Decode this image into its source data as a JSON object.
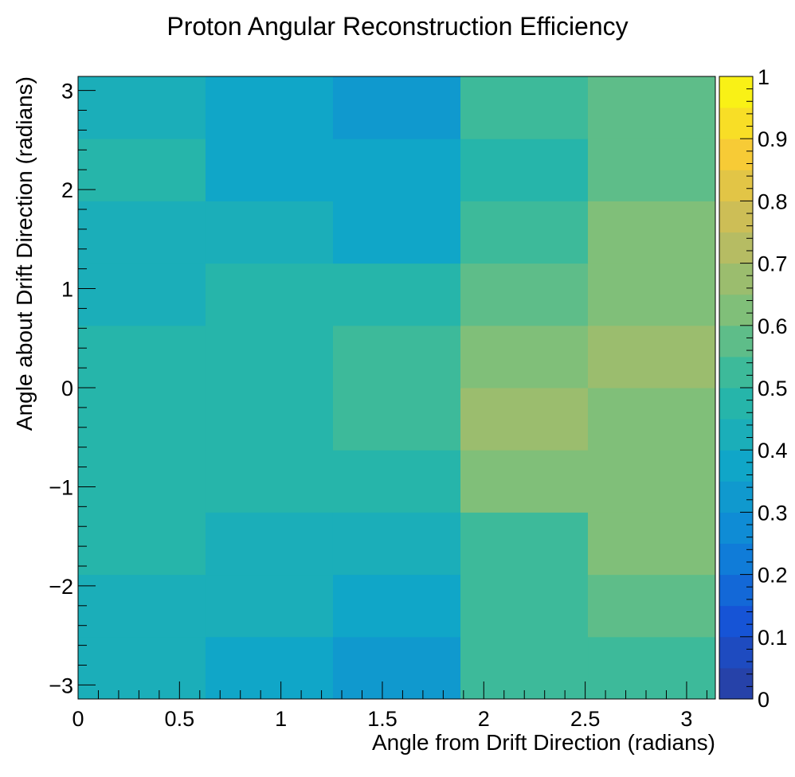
{
  "chart_data": {
    "type": "heatmap",
    "title": "Proton Angular Reconstruction Efficiency",
    "xlabel": "Angle from Drift Direction (radians)",
    "ylabel": "Angle about Drift Direction (radians)",
    "xlim": [
      0,
      3.1416
    ],
    "ylim": [
      -3.1416,
      3.1416
    ],
    "x_bin_edges": [
      0,
      0.6283,
      1.2566,
      1.885,
      2.5133,
      3.1416
    ],
    "y_bin_edges": [
      -3.1416,
      -2.5133,
      -1.885,
      -1.2566,
      -0.6283,
      0,
      0.6283,
      1.2566,
      1.885,
      2.5133,
      3.1416
    ],
    "x_ticks": [
      0,
      0.5,
      1,
      1.5,
      2,
      2.5,
      3
    ],
    "x_tick_labels": [
      "0",
      "0.5",
      "1",
      "1.5",
      "2",
      "2.5",
      "3"
    ],
    "y_ticks": [
      -3,
      -2,
      -1,
      0,
      1,
      2,
      3
    ],
    "y_tick_labels": [
      "−3",
      "−2",
      "−1",
      "0",
      "1",
      "2",
      "3"
    ],
    "values_rows_bottom_to_top": [
      [
        0.43,
        0.38,
        0.33,
        0.52,
        0.52
      ],
      [
        0.43,
        0.43,
        0.38,
        0.52,
        0.57
      ],
      [
        0.48,
        0.43,
        0.43,
        0.52,
        0.62
      ],
      [
        0.48,
        0.48,
        0.48,
        0.62,
        0.62
      ],
      [
        0.48,
        0.48,
        0.52,
        0.67,
        0.62
      ],
      [
        0.48,
        0.48,
        0.52,
        0.62,
        0.67
      ],
      [
        0.43,
        0.48,
        0.48,
        0.57,
        0.62
      ],
      [
        0.43,
        0.43,
        0.38,
        0.52,
        0.62
      ],
      [
        0.48,
        0.38,
        0.38,
        0.48,
        0.57
      ],
      [
        0.43,
        0.38,
        0.33,
        0.52,
        0.57
      ]
    ],
    "zlim": [
      0,
      1
    ],
    "colorbar_ticks": [
      0,
      0.1,
      0.2,
      0.3,
      0.4,
      0.5,
      0.6,
      0.7,
      0.8,
      0.9,
      1
    ],
    "colorbar_tick_labels": [
      "0",
      "0.1",
      "0.2",
      "0.3",
      "0.4",
      "0.5",
      "0.6",
      "0.7",
      "0.8",
      "0.9",
      "1"
    ],
    "colorbar_levels": 20,
    "palette_anchor_values": [
      0,
      0.125,
      0.25,
      0.375,
      0.5,
      0.625,
      0.75,
      0.875,
      1
    ],
    "palette_anchor_colors": [
      "#2a3d9e",
      "#1654d6",
      "#0f86d8",
      "#10a6c8",
      "#2cb9a2",
      "#80bf79",
      "#c3bb5e",
      "#f7cb36",
      "#f9fb0e"
    ],
    "grid": false,
    "colorbar_position": "right"
  }
}
